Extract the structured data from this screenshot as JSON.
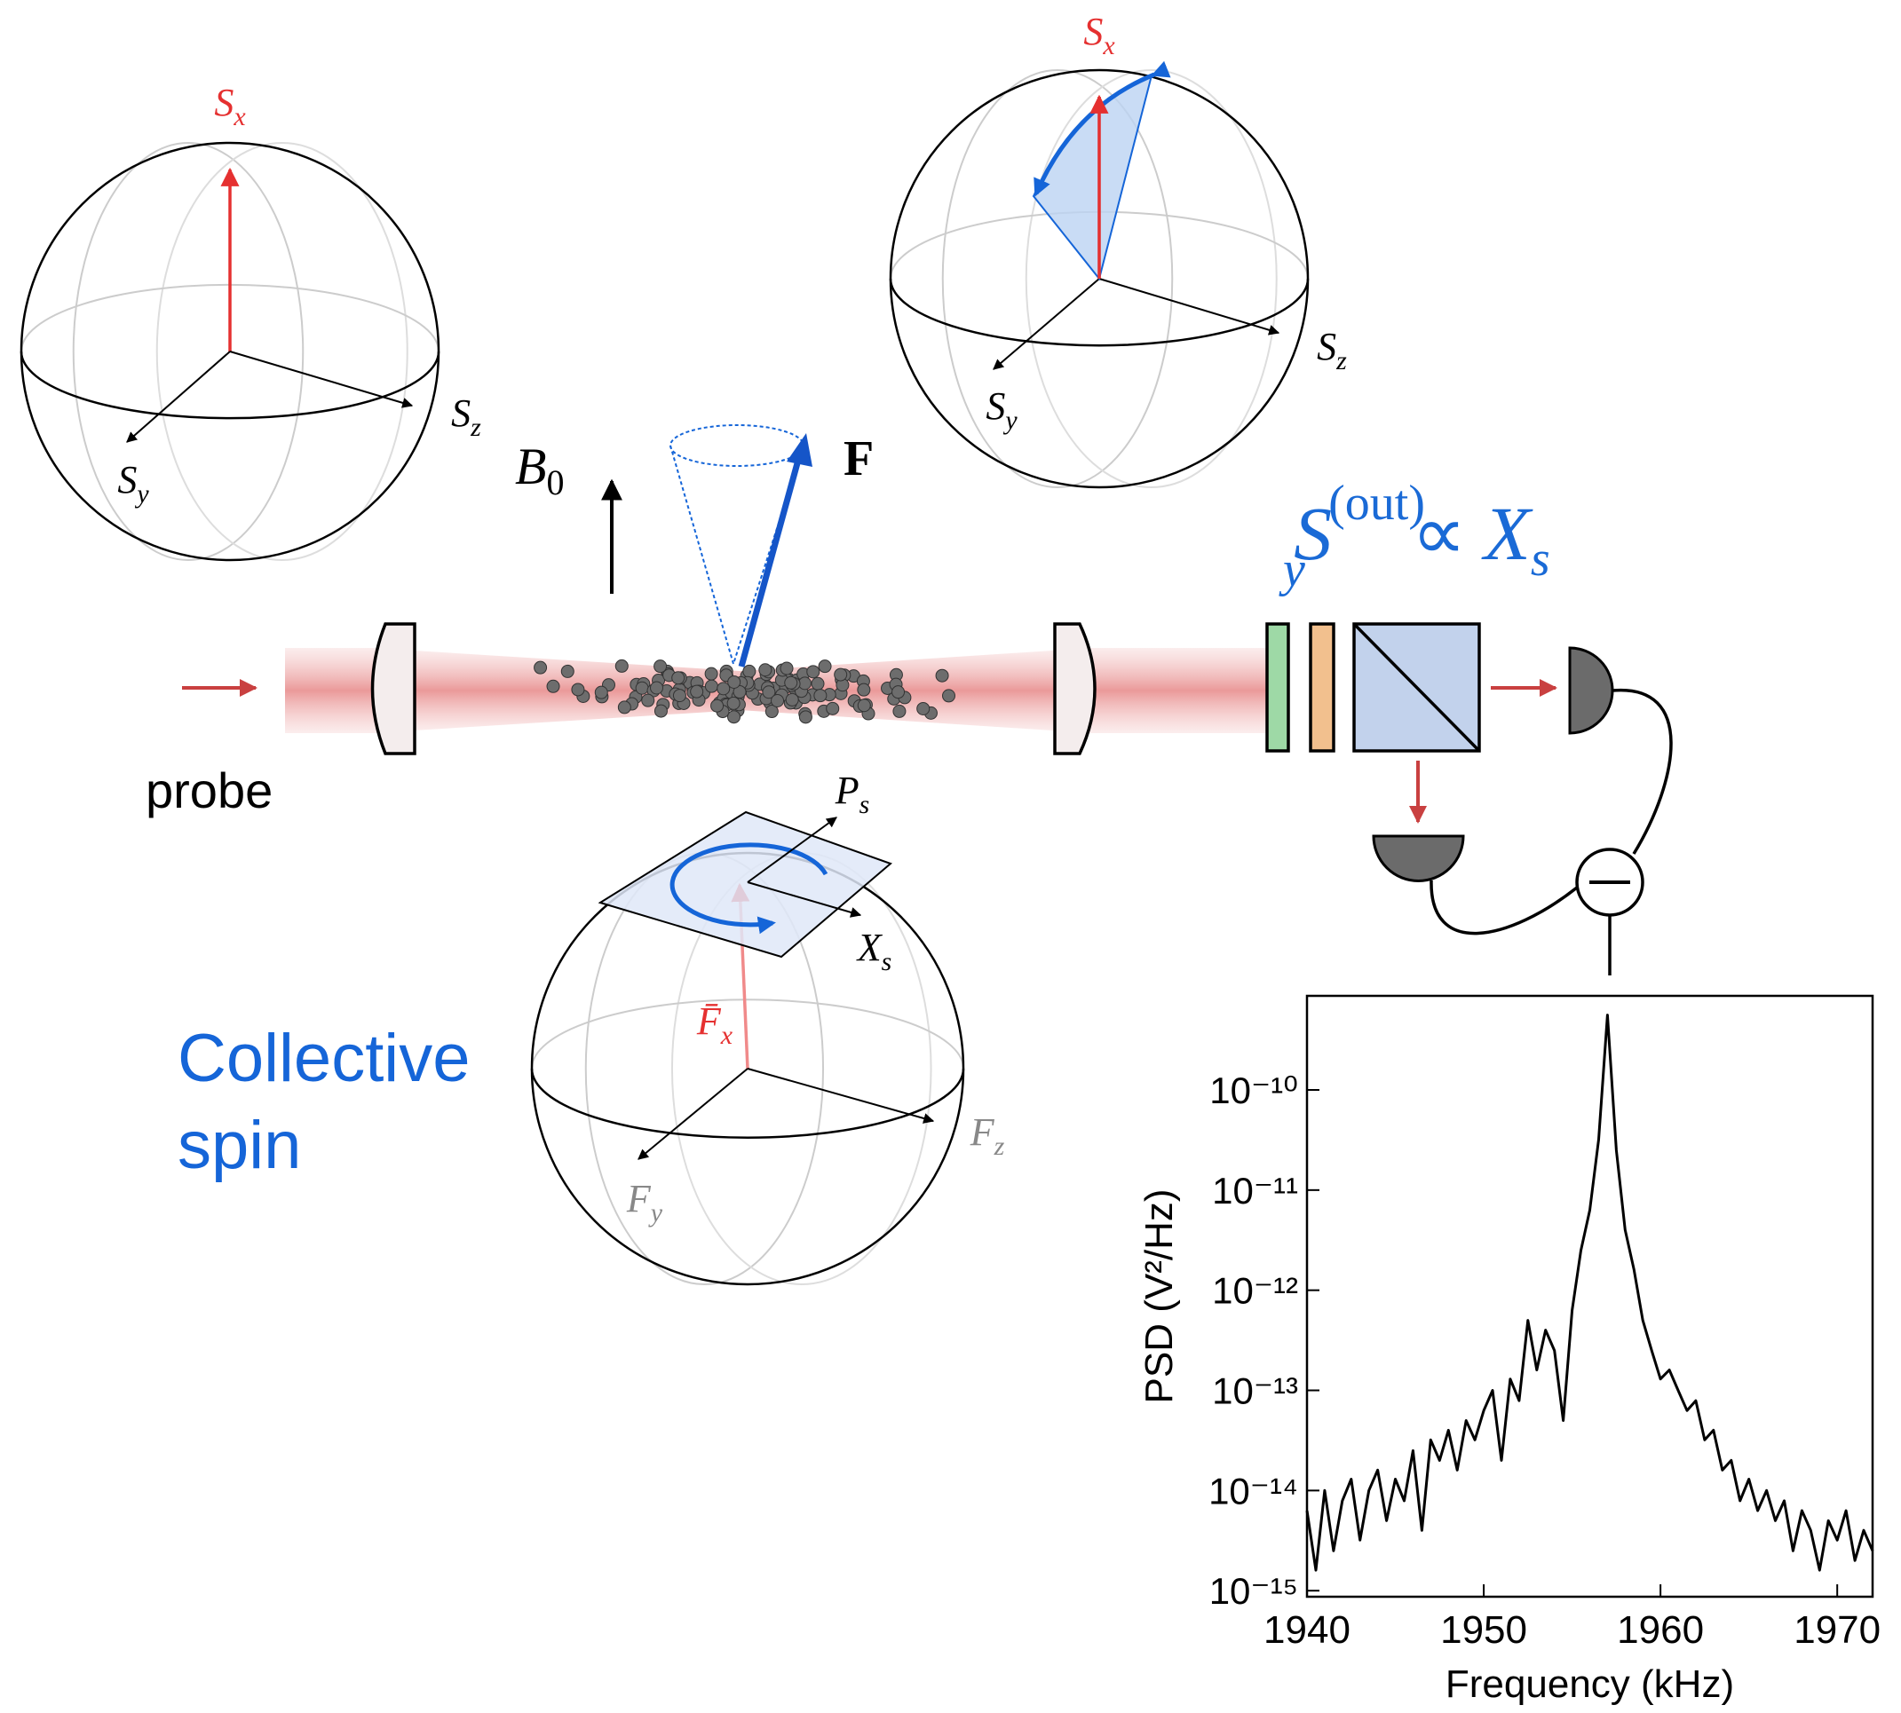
{
  "spheres": [
    {
      "labels": [
        {
          "main": "S",
          "sub": "x"
        },
        {
          "main": "S",
          "sub": "y"
        },
        {
          "main": "S",
          "sub": "z"
        }
      ]
    },
    {
      "labels": [
        {
          "main": "S",
          "sub": "x"
        },
        {
          "main": "S",
          "sub": "y"
        },
        {
          "main": "S",
          "sub": "z"
        }
      ]
    },
    {
      "labels": [
        {
          "main": "F̄",
          "sub": "x"
        },
        {
          "main": "F",
          "sub": "y"
        },
        {
          "main": "F",
          "sub": "z"
        }
      ],
      "plane_labels": [
        {
          "main": "P",
          "sub": "s"
        },
        {
          "main": "X",
          "sub": "s"
        }
      ]
    }
  ],
  "field": {
    "main": "B",
    "sub": "0"
  },
  "spin_vector": "F",
  "output": {
    "main": "S",
    "sub": "y",
    "sup": "(out)",
    "relation": "∝",
    "rhs": "X",
    "rhs_sub": "s"
  },
  "probe": "probe",
  "caption": [
    "Collective",
    "spin"
  ],
  "chart_data": {
    "type": "line",
    "xlabel": "Frequency (kHz)",
    "ylabel": "PSD (V²/Hz)",
    "color": "#000000",
    "log_y": true,
    "x": [
      1940,
      1940.5,
      1941,
      1941.5,
      1942,
      1942.5,
      1943,
      1943.5,
      1944,
      1944.5,
      1945,
      1945.5,
      1946,
      1946.5,
      1947,
      1947.5,
      1948,
      1948.5,
      1949,
      1949.5,
      1950,
      1950.5,
      1951,
      1951.5,
      1952,
      1952.5,
      1953,
      1953.5,
      1954,
      1954.5,
      1955,
      1955.5,
      1956,
      1956.5,
      1957,
      1957.5,
      1958,
      1958.5,
      1959,
      1959.5,
      1960,
      1960.5,
      1961,
      1961.5,
      1962,
      1962.5,
      1963,
      1963.5,
      1964,
      1964.5,
      1965,
      1965.5,
      1966,
      1966.5,
      1967,
      1967.5,
      1968,
      1968.5,
      1969,
      1969.5,
      1970,
      1970.5,
      1971,
      1971.5,
      1972
    ],
    "values": [
      6.3e-15,
      1.6e-15,
      1e-14,
      2.5e-15,
      7.9e-15,
      1.3e-14,
      3.2e-15,
      1e-14,
      1.6e-14,
      5e-15,
      1.3e-14,
      7.9e-15,
      2.5e-14,
      4e-15,
      3.2e-14,
      2e-14,
      4e-14,
      1.6e-14,
      5e-14,
      3.2e-14,
      6.3e-14,
      1e-13,
      2e-14,
      1.3e-13,
      7.9e-14,
      5e-13,
      1.6e-13,
      4e-13,
      2.5e-13,
      5e-14,
      6.3e-13,
      2.5e-12,
      6.3e-12,
      3.2e-11,
      5.6e-10,
      2.5e-11,
      4e-12,
      1.6e-12,
      5e-13,
      2.5e-13,
      1.3e-13,
      1.6e-13,
      1e-13,
      6.3e-14,
      7.9e-14,
      3.2e-14,
      4e-14,
      1.6e-14,
      2e-14,
      7.9e-15,
      1.3e-14,
      6.3e-15,
      1e-14,
      5e-15,
      7.9e-15,
      2.5e-15,
      6.3e-15,
      4e-15,
      1.6e-15,
      5e-15,
      3.2e-15,
      6.3e-15,
      2e-15,
      4e-15,
      2.5e-15
    ],
    "xlim": [
      1940,
      1972
    ],
    "xticks": [
      1940,
      1950,
      1960,
      1970
    ],
    "ylim": [
      8.7e-16,
      8.7e-10
    ],
    "yticks": [
      {
        "value": 1e-15,
        "label": "10⁻¹⁵"
      },
      {
        "value": 1e-14,
        "label": "10⁻¹⁴"
      },
      {
        "value": 1e-13,
        "label": "10⁻¹³"
      },
      {
        "value": 1e-12,
        "label": "10⁻¹²"
      },
      {
        "value": 1e-11,
        "label": "10⁻¹¹"
      },
      {
        "value": 1e-10,
        "label": "10⁻¹⁰"
      }
    ]
  }
}
